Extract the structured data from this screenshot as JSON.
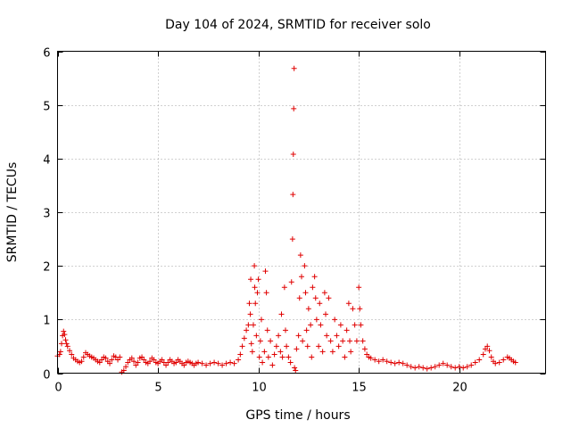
{
  "chart_data": {
    "type": "scatter",
    "title": "Day 104 of 2024, SRMTID for receiver solo",
    "xlabel": "GPS time / hours",
    "ylabel": "SRMTID / TECUs",
    "xlim": [
      0,
      24.3
    ],
    "ylim": [
      0,
      6
    ],
    "xticks": [
      0,
      5,
      10,
      15,
      20
    ],
    "yticks": [
      0,
      1,
      2,
      3,
      4,
      5,
      6
    ],
    "grid": true,
    "marker": "plus",
    "color": "#e00000",
    "series": [
      {
        "name": "SRMTID",
        "points": [
          [
            0.0,
            0.32
          ],
          [
            0.1,
            0.35
          ],
          [
            0.15,
            0.4
          ],
          [
            0.2,
            0.55
          ],
          [
            0.25,
            0.7
          ],
          [
            0.3,
            0.78
          ],
          [
            0.35,
            0.72
          ],
          [
            0.4,
            0.62
          ],
          [
            0.45,
            0.55
          ],
          [
            0.5,
            0.5
          ],
          [
            0.6,
            0.42
          ],
          [
            0.7,
            0.35
          ],
          [
            0.8,
            0.28
          ],
          [
            0.9,
            0.25
          ],
          [
            1.0,
            0.22
          ],
          [
            1.1,
            0.2
          ],
          [
            1.2,
            0.22
          ],
          [
            1.3,
            0.3
          ],
          [
            1.4,
            0.38
          ],
          [
            1.5,
            0.35
          ],
          [
            1.6,
            0.32
          ],
          [
            1.7,
            0.3
          ],
          [
            1.8,
            0.28
          ],
          [
            1.9,
            0.25
          ],
          [
            2.0,
            0.22
          ],
          [
            2.1,
            0.2
          ],
          [
            2.2,
            0.25
          ],
          [
            2.3,
            0.3
          ],
          [
            2.4,
            0.28
          ],
          [
            2.5,
            0.22
          ],
          [
            2.6,
            0.18
          ],
          [
            2.7,
            0.25
          ],
          [
            2.8,
            0.32
          ],
          [
            2.9,
            0.3
          ],
          [
            3.0,
            0.25
          ],
          [
            3.1,
            0.3
          ],
          [
            3.2,
            0.02
          ],
          [
            3.3,
            0.05
          ],
          [
            3.4,
            0.12
          ],
          [
            3.5,
            0.2
          ],
          [
            3.6,
            0.25
          ],
          [
            3.7,
            0.28
          ],
          [
            3.8,
            0.22
          ],
          [
            3.9,
            0.15
          ],
          [
            4.0,
            0.2
          ],
          [
            4.1,
            0.28
          ],
          [
            4.2,
            0.3
          ],
          [
            4.3,
            0.25
          ],
          [
            4.4,
            0.2
          ],
          [
            4.5,
            0.18
          ],
          [
            4.6,
            0.22
          ],
          [
            4.7,
            0.28
          ],
          [
            4.8,
            0.25
          ],
          [
            4.9,
            0.2
          ],
          [
            5.0,
            0.18
          ],
          [
            5.1,
            0.22
          ],
          [
            5.2,
            0.25
          ],
          [
            5.3,
            0.2
          ],
          [
            5.4,
            0.15
          ],
          [
            5.5,
            0.2
          ],
          [
            5.6,
            0.25
          ],
          [
            5.7,
            0.22
          ],
          [
            5.8,
            0.18
          ],
          [
            5.9,
            0.2
          ],
          [
            6.0,
            0.25
          ],
          [
            6.1,
            0.22
          ],
          [
            6.2,
            0.18
          ],
          [
            6.3,
            0.15
          ],
          [
            6.4,
            0.2
          ],
          [
            6.5,
            0.22
          ],
          [
            6.6,
            0.2
          ],
          [
            6.7,
            0.18
          ],
          [
            6.8,
            0.15
          ],
          [
            6.9,
            0.18
          ],
          [
            7.0,
            0.2
          ],
          [
            7.2,
            0.18
          ],
          [
            7.4,
            0.15
          ],
          [
            7.6,
            0.18
          ],
          [
            7.8,
            0.2
          ],
          [
            8.0,
            0.18
          ],
          [
            8.2,
            0.15
          ],
          [
            8.4,
            0.18
          ],
          [
            8.6,
            0.2
          ],
          [
            8.8,
            0.18
          ],
          [
            9.0,
            0.25
          ],
          [
            9.1,
            0.35
          ],
          [
            9.2,
            0.5
          ],
          [
            9.3,
            0.65
          ],
          [
            9.4,
            0.8
          ],
          [
            9.5,
            0.9
          ],
          [
            9.55,
            1.3
          ],
          [
            9.6,
            1.1
          ],
          [
            9.62,
            1.75
          ],
          [
            9.65,
            0.55
          ],
          [
            9.7,
            0.4
          ],
          [
            9.75,
            0.9
          ],
          [
            9.8,
            2.0
          ],
          [
            9.82,
            1.6
          ],
          [
            9.85,
            1.3
          ],
          [
            9.9,
            0.7
          ],
          [
            9.95,
            1.5
          ],
          [
            10.0,
            1.75
          ],
          [
            10.05,
            0.3
          ],
          [
            10.1,
            0.6
          ],
          [
            10.15,
            1.0
          ],
          [
            10.2,
            0.2
          ],
          [
            10.3,
            0.4
          ],
          [
            10.35,
            1.9
          ],
          [
            10.4,
            1.5
          ],
          [
            10.45,
            0.8
          ],
          [
            10.5,
            0.3
          ],
          [
            10.6,
            0.6
          ],
          [
            10.7,
            0.15
          ],
          [
            10.8,
            0.35
          ],
          [
            10.9,
            0.5
          ],
          [
            11.0,
            0.7
          ],
          [
            11.1,
            0.4
          ],
          [
            11.15,
            1.1
          ],
          [
            11.2,
            0.3
          ],
          [
            11.3,
            1.6
          ],
          [
            11.35,
            0.8
          ],
          [
            11.4,
            0.5
          ],
          [
            11.5,
            0.3
          ],
          [
            11.6,
            0.2
          ],
          [
            11.65,
            1.7
          ],
          [
            11.7,
            2.5
          ],
          [
            11.72,
            3.33
          ],
          [
            11.74,
            4.08
          ],
          [
            11.76,
            4.93
          ],
          [
            11.78,
            5.68
          ],
          [
            11.8,
            0.1
          ],
          [
            11.85,
            0.05
          ],
          [
            11.9,
            0.45
          ],
          [
            12.0,
            0.7
          ],
          [
            12.05,
            1.4
          ],
          [
            12.1,
            2.2
          ],
          [
            12.15,
            1.8
          ],
          [
            12.2,
            0.6
          ],
          [
            12.3,
            2.0
          ],
          [
            12.35,
            1.5
          ],
          [
            12.4,
            0.8
          ],
          [
            12.45,
            0.5
          ],
          [
            12.5,
            1.2
          ],
          [
            12.6,
            0.9
          ],
          [
            12.65,
            0.3
          ],
          [
            12.7,
            1.6
          ],
          [
            12.8,
            1.8
          ],
          [
            12.85,
            1.4
          ],
          [
            12.9,
            1.0
          ],
          [
            13.0,
            0.5
          ],
          [
            13.05,
            1.3
          ],
          [
            13.1,
            0.9
          ],
          [
            13.2,
            0.4
          ],
          [
            13.3,
            1.5
          ],
          [
            13.35,
            1.1
          ],
          [
            13.4,
            0.7
          ],
          [
            13.5,
            1.4
          ],
          [
            13.6,
            0.6
          ],
          [
            13.7,
            0.4
          ],
          [
            13.8,
            1.0
          ],
          [
            13.9,
            0.7
          ],
          [
            14.0,
            0.5
          ],
          [
            14.1,
            0.9
          ],
          [
            14.2,
            0.6
          ],
          [
            14.3,
            0.3
          ],
          [
            14.4,
            0.8
          ],
          [
            14.5,
            1.3
          ],
          [
            14.55,
            0.6
          ],
          [
            14.6,
            0.4
          ],
          [
            14.7,
            1.2
          ],
          [
            14.8,
            0.9
          ],
          [
            14.9,
            0.6
          ],
          [
            15.0,
            1.6
          ],
          [
            15.05,
            1.2
          ],
          [
            15.1,
            0.9
          ],
          [
            15.2,
            0.6
          ],
          [
            15.3,
            0.45
          ],
          [
            15.4,
            0.35
          ],
          [
            15.5,
            0.3
          ],
          [
            15.6,
            0.28
          ],
          [
            15.8,
            0.25
          ],
          [
            16.0,
            0.22
          ],
          [
            16.2,
            0.25
          ],
          [
            16.4,
            0.22
          ],
          [
            16.6,
            0.2
          ],
          [
            16.8,
            0.18
          ],
          [
            17.0,
            0.2
          ],
          [
            17.2,
            0.18
          ],
          [
            17.4,
            0.15
          ],
          [
            17.6,
            0.12
          ],
          [
            17.8,
            0.1
          ],
          [
            18.0,
            0.12
          ],
          [
            18.2,
            0.1
          ],
          [
            18.4,
            0.08
          ],
          [
            18.6,
            0.1
          ],
          [
            18.8,
            0.12
          ],
          [
            19.0,
            0.15
          ],
          [
            19.2,
            0.18
          ],
          [
            19.4,
            0.15
          ],
          [
            19.6,
            0.12
          ],
          [
            19.8,
            0.1
          ],
          [
            20.0,
            0.12
          ],
          [
            20.2,
            0.1
          ],
          [
            20.4,
            0.12
          ],
          [
            20.6,
            0.15
          ],
          [
            20.8,
            0.2
          ],
          [
            21.0,
            0.25
          ],
          [
            21.2,
            0.35
          ],
          [
            21.3,
            0.45
          ],
          [
            21.4,
            0.5
          ],
          [
            21.5,
            0.42
          ],
          [
            21.6,
            0.3
          ],
          [
            21.7,
            0.22
          ],
          [
            21.8,
            0.18
          ],
          [
            22.0,
            0.2
          ],
          [
            22.2,
            0.25
          ],
          [
            22.4,
            0.3
          ],
          [
            22.5,
            0.28
          ],
          [
            22.6,
            0.25
          ],
          [
            22.7,
            0.22
          ],
          [
            22.8,
            0.2
          ]
        ]
      }
    ]
  }
}
